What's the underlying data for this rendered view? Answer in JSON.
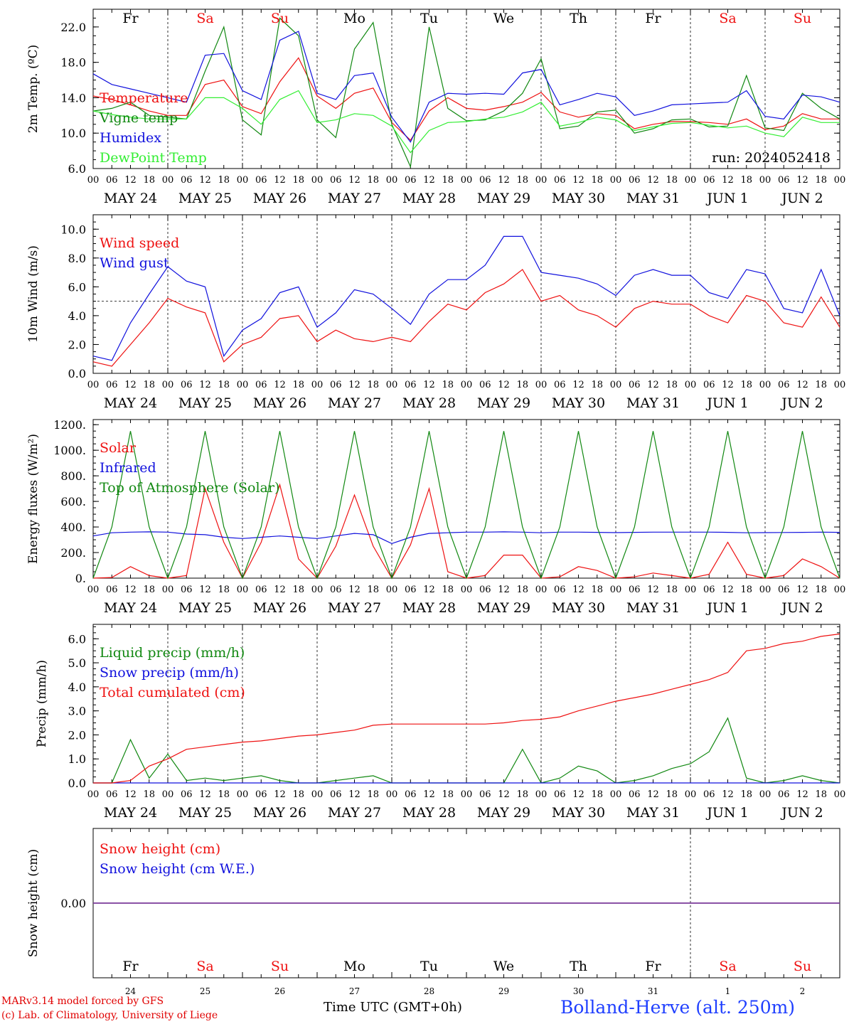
{
  "meta": {
    "run_label": "run: 2024052418",
    "x_axis_title": "Time UTC (GMT+0h)",
    "day_number_title_overlay": "MAY",
    "credit_line1": "MARv3.14 model forced by GFS",
    "credit_line2": "(c) Lab. of Climatology, University of Liege",
    "station": "Bolland-Herve (alt. 250m)"
  },
  "colors": {
    "red": "#ee1111",
    "green": "#118811",
    "blue": "#1111dd",
    "light_green": "#33ee33",
    "weekend": "#ee1111",
    "weekday": "#000000",
    "snow_line": "#7a3a9a"
  },
  "time_axis": {
    "hour_ticks": [
      "00",
      "06",
      "12",
      "18"
    ],
    "end_tick": "00",
    "date_labels": [
      "MAY 24",
      "MAY 25",
      "MAY 26",
      "MAY 27",
      "MAY 28",
      "MAY 29",
      "MAY 30",
      "MAY 31",
      "JUN  1",
      "JUN  2"
    ],
    "weekdays": [
      {
        "label": "Fr",
        "weekend": false
      },
      {
        "label": "Sa",
        "weekend": true
      },
      {
        "label": "Su",
        "weekend": true
      },
      {
        "label": "Mo",
        "weekend": false
      },
      {
        "label": "Tu",
        "weekend": false
      },
      {
        "label": "We",
        "weekend": false
      },
      {
        "label": "Th",
        "weekend": false
      },
      {
        "label": "Fr",
        "weekend": false
      },
      {
        "label": "Sa",
        "weekend": true
      },
      {
        "label": "Su",
        "weekend": true
      }
    ],
    "day_numbers": [
      "24",
      "25",
      "26",
      "27",
      "28",
      "29",
      "30",
      "31",
      "1",
      "2"
    ]
  },
  "chart_data": [
    {
      "type": "line",
      "ylabel": "2m Temp. (ºC)",
      "ylim": [
        6,
        24
      ],
      "yticks": [
        "6.0",
        "10.0",
        "14.0",
        "18.0",
        "22.0"
      ],
      "ytick_values": [
        6,
        10,
        14,
        18,
        22
      ],
      "x_hours": [
        0,
        6,
        12,
        18,
        24,
        30,
        36,
        42,
        48,
        54,
        60,
        66,
        72,
        78,
        84,
        90,
        96,
        102,
        108,
        114,
        120,
        126,
        132,
        138,
        144,
        150,
        156,
        162,
        168,
        174,
        180,
        186,
        192,
        198,
        204,
        210,
        216,
        222,
        228,
        234,
        240
      ],
      "series": [
        {
          "name": "Temperature",
          "color": "red",
          "values": [
            14.2,
            13.8,
            13.2,
            12.5,
            12,
            12,
            15.5,
            16,
            13,
            12.2,
            15.8,
            18.5,
            14.2,
            12.8,
            14.5,
            15.1,
            11.2,
            9.2,
            12.5,
            14,
            12.8,
            12.6,
            13,
            13.5,
            14.6,
            12.4,
            11.8,
            12.2,
            12,
            10.5,
            11,
            11.3,
            11.3,
            11.2,
            11,
            11.6,
            10.4,
            10.8,
            12.2,
            11.6,
            11.6
          ]
        },
        {
          "name": "Vigne temp",
          "color": "green",
          "values": [
            12.5,
            12.8,
            13.5,
            12,
            11.8,
            11.6,
            17,
            22,
            11.5,
            9.8,
            23,
            21,
            11.5,
            9.5,
            19.5,
            22.5,
            11,
            6.2,
            22,
            12.8,
            11.4,
            11.5,
            12.5,
            14.5,
            18.4,
            10.5,
            10.8,
            12.4,
            12.6,
            10,
            10.5,
            11.5,
            11.6,
            10.7,
            10.8,
            16.5,
            10.6,
            10.3,
            14.5,
            12.8,
            11.6
          ]
        },
        {
          "name": "Humidex",
          "color": "blue",
          "values": [
            16.7,
            15.5,
            15,
            14.5,
            14,
            13.5,
            18.8,
            19,
            14.8,
            13.8,
            20.5,
            21.5,
            14.5,
            13.8,
            16.5,
            16.8,
            11.8,
            9,
            13.5,
            14.5,
            14.4,
            14.5,
            14.4,
            16.8,
            17.2,
            13.2,
            13.8,
            14.5,
            14.1,
            12,
            12.5,
            13.2,
            13.3,
            13.4,
            13.5,
            14.8,
            11.9,
            11.6,
            14.3,
            14.1,
            13.5
          ]
        },
        {
          "name": "DewPoint Temp",
          "color": "light_green",
          "values": [
            12.5,
            12.1,
            11.8,
            11.6,
            11.6,
            11.6,
            14,
            14,
            12.8,
            11,
            13.8,
            14.8,
            11.2,
            11.5,
            12.2,
            12,
            10.8,
            7.8,
            10.3,
            11.2,
            11.3,
            11.6,
            11.8,
            12.4,
            13.5,
            10.8,
            11.2,
            11.8,
            11.5,
            10.3,
            10.7,
            11.1,
            11.2,
            10.9,
            10.6,
            10.8,
            10,
            9.6,
            11.8,
            11.2,
            11.2
          ]
        }
      ]
    },
    {
      "type": "line",
      "ylabel": "10m Wind (m/s)",
      "ylim": [
        0,
        11
      ],
      "yticks": [
        "0.0",
        "2.0",
        "4.0",
        "6.0",
        "8.0",
        "10.0"
      ],
      "ytick_values": [
        0,
        2,
        4,
        6,
        8,
        10
      ],
      "reference_line": 5,
      "x_hours": [
        0,
        6,
        12,
        18,
        24,
        30,
        36,
        42,
        48,
        54,
        60,
        66,
        72,
        78,
        84,
        90,
        96,
        102,
        108,
        114,
        120,
        126,
        132,
        138,
        144,
        150,
        156,
        162,
        168,
        174,
        180,
        186,
        192,
        198,
        204,
        210,
        216,
        222,
        228,
        234,
        240
      ],
      "series": [
        {
          "name": "Wind speed",
          "color": "red",
          "values": [
            0.8,
            0.5,
            2,
            3.5,
            5.2,
            4.6,
            4.2,
            0.8,
            2,
            2.5,
            3.8,
            4,
            2.2,
            3,
            2.4,
            2.2,
            2.5,
            2.2,
            3.6,
            4.8,
            4.4,
            5.6,
            6.2,
            7.2,
            5,
            5.4,
            4.4,
            4,
            3.2,
            4.5,
            5,
            4.8,
            4.8,
            4,
            3.5,
            5.4,
            5,
            3.5,
            3.2,
            5.3,
            3.2
          ]
        },
        {
          "name": "Wind gust",
          "color": "blue",
          "values": [
            1.2,
            0.9,
            3.5,
            5.5,
            7.4,
            6.4,
            6,
            1.2,
            3,
            3.8,
            5.6,
            6,
            3.2,
            4.2,
            5.8,
            5.5,
            4.5,
            3.4,
            5.5,
            6.5,
            6.5,
            7.5,
            9.5,
            9.5,
            7,
            6.8,
            6.6,
            6.2,
            5.4,
            6.8,
            7.2,
            6.8,
            6.8,
            5.6,
            5.2,
            7.2,
            6.9,
            4.5,
            4.2,
            7.2,
            4
          ]
        }
      ]
    },
    {
      "type": "line",
      "ylabel": "Energy fluxes (W/m²)",
      "ylim": [
        0,
        1240
      ],
      "yticks": [
        "0.",
        "200.",
        "400.",
        "600.",
        "800.",
        "1000.",
        "1200."
      ],
      "ytick_values": [
        0,
        200,
        400,
        600,
        800,
        1000,
        1200
      ],
      "x_hours": [
        0,
        6,
        12,
        18,
        24,
        30,
        36,
        42,
        48,
        54,
        60,
        66,
        72,
        78,
        84,
        90,
        96,
        102,
        108,
        114,
        120,
        126,
        132,
        138,
        144,
        150,
        156,
        162,
        168,
        174,
        180,
        186,
        192,
        198,
        204,
        210,
        216,
        222,
        228,
        234,
        240
      ],
      "series": [
        {
          "name": "Solar",
          "color": "red",
          "values": [
            0,
            5,
            90,
            20,
            0,
            20,
            700,
            280,
            0,
            280,
            730,
            150,
            0,
            250,
            650,
            250,
            0,
            260,
            700,
            50,
            0,
            20,
            180,
            180,
            0,
            10,
            90,
            60,
            0,
            10,
            40,
            20,
            0,
            30,
            280,
            30,
            0,
            20,
            150,
            90,
            0
          ]
        },
        {
          "name": "Infrared",
          "color": "blue",
          "values": [
            330,
            355,
            360,
            362,
            360,
            345,
            340,
            320,
            310,
            320,
            330,
            320,
            310,
            330,
            350,
            340,
            270,
            320,
            350,
            355,
            360,
            360,
            362,
            360,
            355,
            360,
            360,
            358,
            356,
            358,
            360,
            360,
            360,
            360,
            358,
            355,
            356,
            357,
            358,
            360,
            358
          ]
        },
        {
          "name": "Top of Atmosphere (Solar)",
          "color": "green",
          "values": [
            0,
            400,
            1150,
            400,
            0,
            400,
            1150,
            400,
            0,
            400,
            1150,
            400,
            0,
            400,
            1150,
            400,
            0,
            400,
            1150,
            400,
            0,
            400,
            1150,
            400,
            0,
            400,
            1150,
            400,
            0,
            400,
            1150,
            400,
            0,
            400,
            1150,
            400,
            0,
            400,
            1150,
            400,
            0
          ]
        }
      ]
    },
    {
      "type": "line",
      "ylabel": "Precip (mm/h)",
      "ylim": [
        0,
        6.6
      ],
      "yticks": [
        "0.0",
        "1.0",
        "2.0",
        "3.0",
        "4.0",
        "5.0",
        "6.0"
      ],
      "ytick_values": [
        0,
        1,
        2,
        3,
        4,
        5,
        6
      ],
      "x_hours": [
        0,
        6,
        12,
        18,
        24,
        30,
        36,
        42,
        48,
        54,
        60,
        66,
        72,
        78,
        84,
        90,
        96,
        102,
        108,
        114,
        120,
        126,
        132,
        138,
        144,
        150,
        156,
        162,
        168,
        174,
        180,
        186,
        192,
        198,
        204,
        210,
        216,
        222,
        228,
        234,
        240
      ],
      "series": [
        {
          "name": "Liquid precip (mm/h)",
          "color": "green",
          "values": [
            0,
            0,
            1.8,
            0.2,
            1.2,
            0.1,
            0.2,
            0.1,
            0.2,
            0.3,
            0.1,
            0,
            0,
            0.1,
            0.2,
            0.3,
            0,
            0,
            0,
            0,
            0,
            0,
            0,
            1.4,
            0,
            0.2,
            0.7,
            0.5,
            0,
            0.1,
            0.3,
            0.6,
            0.8,
            1.3,
            2.7,
            0.2,
            0,
            0.1,
            0.3,
            0.1,
            0
          ]
        },
        {
          "name": "Snow precip (mm/h)",
          "color": "blue",
          "values": [
            0,
            0,
            0,
            0,
            0,
            0,
            0,
            0,
            0,
            0,
            0,
            0,
            0,
            0,
            0,
            0,
            0,
            0,
            0,
            0,
            0,
            0,
            0,
            0,
            0,
            0,
            0,
            0,
            0,
            0,
            0,
            0,
            0,
            0,
            0,
            0,
            0,
            0,
            0,
            0,
            0
          ]
        },
        {
          "name": "Total cumulated (cm)",
          "color": "red",
          "values": [
            0,
            0,
            0.1,
            0.7,
            1,
            1.4,
            1.5,
            1.6,
            1.7,
            1.75,
            1.85,
            1.95,
            2,
            2.1,
            2.2,
            2.4,
            2.45,
            2.45,
            2.45,
            2.45,
            2.45,
            2.45,
            2.5,
            2.6,
            2.65,
            2.75,
            3,
            3.2,
            3.4,
            3.55,
            3.7,
            3.9,
            4.1,
            4.3,
            4.6,
            5.5,
            5.6,
            5.8,
            5.9,
            6.1,
            6.2
          ]
        }
      ]
    },
    {
      "type": "line",
      "ylabel": "Snow height (cm)",
      "ylim": [
        -1,
        1
      ],
      "yticks": [
        "0.00"
      ],
      "ytick_values": [
        0
      ],
      "x_hours": [
        0,
        240
      ],
      "series": [
        {
          "name": "Snow height (cm)",
          "color": "red",
          "values": [
            0,
            0
          ]
        },
        {
          "name": "Snow height (cm W.E.)",
          "color": "blue",
          "values": [
            0,
            0
          ]
        }
      ]
    }
  ]
}
